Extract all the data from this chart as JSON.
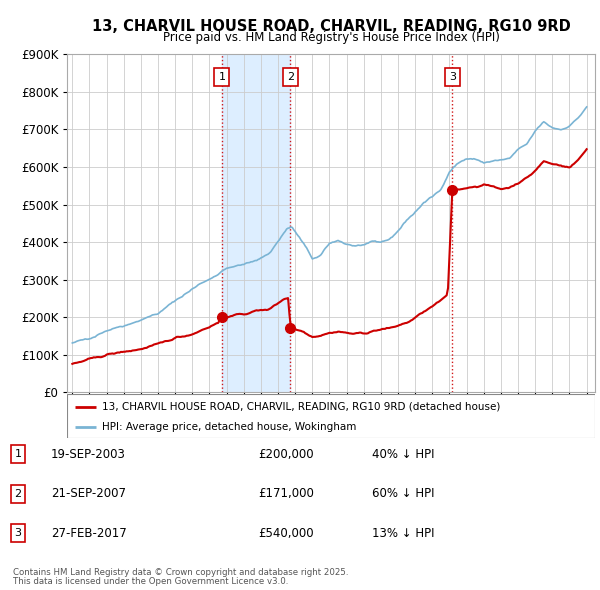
{
  "title": "13, CHARVIL HOUSE ROAD, CHARVIL, READING, RG10 9RD",
  "subtitle": "Price paid vs. HM Land Registry's House Price Index (HPI)",
  "legend_line1": "13, CHARVIL HOUSE ROAD, CHARVIL, READING, RG10 9RD (detached house)",
  "legend_line2": "HPI: Average price, detached house, Wokingham",
  "transactions": [
    {
      "num": 1,
      "date": "19-SEP-2003",
      "date_val": 2003.72,
      "price": 200000,
      "label": "40% ↓ HPI"
    },
    {
      "num": 2,
      "date": "21-SEP-2007",
      "date_val": 2007.72,
      "price": 171000,
      "label": "60% ↓ HPI"
    },
    {
      "num": 3,
      "date": "27-FEB-2017",
      "date_val": 2017.16,
      "price": 540000,
      "label": "13% ↓ HPI"
    }
  ],
  "footnote1": "Contains HM Land Registry data © Crown copyright and database right 2025.",
  "footnote2": "This data is licensed under the Open Government Licence v3.0.",
  "red_color": "#cc0000",
  "blue_color": "#7ab4d4",
  "shade_color": "#ddeeff",
  "grid_color": "#cccccc",
  "bg_color": "#ffffff",
  "ylim": [
    0,
    900000
  ],
  "xlim_start": 1994.7,
  "xlim_end": 2025.5,
  "hpi_anchors": [
    [
      1995.0,
      130000
    ],
    [
      1996.0,
      145000
    ],
    [
      1997.0,
      165000
    ],
    [
      1998.5,
      185000
    ],
    [
      2000.0,
      210000
    ],
    [
      2001.5,
      260000
    ],
    [
      2002.5,
      290000
    ],
    [
      2003.5,
      315000
    ],
    [
      2004.0,
      330000
    ],
    [
      2005.0,
      340000
    ],
    [
      2005.5,
      348000
    ],
    [
      2006.5,
      370000
    ],
    [
      2007.5,
      435000
    ],
    [
      2007.8,
      440000
    ],
    [
      2008.5,
      395000
    ],
    [
      2009.0,
      355000
    ],
    [
      2009.5,
      365000
    ],
    [
      2010.0,
      395000
    ],
    [
      2010.5,
      405000
    ],
    [
      2011.0,
      395000
    ],
    [
      2011.5,
      390000
    ],
    [
      2012.0,
      392000
    ],
    [
      2012.5,
      398000
    ],
    [
      2013.0,
      400000
    ],
    [
      2013.5,
      408000
    ],
    [
      2014.0,
      430000
    ],
    [
      2014.5,
      458000
    ],
    [
      2015.0,
      480000
    ],
    [
      2015.5,
      505000
    ],
    [
      2016.0,
      520000
    ],
    [
      2016.5,
      540000
    ],
    [
      2017.0,
      590000
    ],
    [
      2017.5,
      610000
    ],
    [
      2018.0,
      622000
    ],
    [
      2018.5,
      620000
    ],
    [
      2019.0,
      612000
    ],
    [
      2019.5,
      615000
    ],
    [
      2020.0,
      618000
    ],
    [
      2020.5,
      622000
    ],
    [
      2021.0,
      645000
    ],
    [
      2021.5,
      660000
    ],
    [
      2022.0,
      695000
    ],
    [
      2022.5,
      720000
    ],
    [
      2023.0,
      705000
    ],
    [
      2023.5,
      700000
    ],
    [
      2024.0,
      710000
    ],
    [
      2024.5,
      730000
    ],
    [
      2025.0,
      760000
    ]
  ],
  "red_anchors": [
    [
      1995.0,
      75000
    ],
    [
      1996.0,
      88000
    ],
    [
      1997.0,
      100000
    ],
    [
      1998.0,
      108000
    ],
    [
      1999.0,
      115000
    ],
    [
      2000.0,
      128000
    ],
    [
      2001.0,
      145000
    ],
    [
      2002.0,
      155000
    ],
    [
      2003.0,
      175000
    ],
    [
      2003.5,
      185000
    ],
    [
      2003.72,
      200000
    ],
    [
      2004.0,
      202000
    ],
    [
      2004.5,
      205000
    ],
    [
      2005.0,
      208000
    ],
    [
      2005.5,
      215000
    ],
    [
      2006.0,
      218000
    ],
    [
      2006.5,
      222000
    ],
    [
      2007.3,
      248000
    ],
    [
      2007.6,
      252000
    ],
    [
      2007.72,
      171000
    ],
    [
      2008.0,
      168000
    ],
    [
      2008.5,
      162000
    ],
    [
      2009.0,
      148000
    ],
    [
      2009.5,
      152000
    ],
    [
      2010.0,
      158000
    ],
    [
      2010.5,
      162000
    ],
    [
      2011.0,
      158000
    ],
    [
      2011.5,
      156000
    ],
    [
      2012.0,
      158000
    ],
    [
      2012.5,
      162000
    ],
    [
      2013.0,
      168000
    ],
    [
      2013.5,
      170000
    ],
    [
      2014.0,
      178000
    ],
    [
      2014.5,
      185000
    ],
    [
      2015.0,
      198000
    ],
    [
      2015.5,
      215000
    ],
    [
      2016.0,
      228000
    ],
    [
      2016.5,
      245000
    ],
    [
      2016.9,
      258000
    ],
    [
      2017.16,
      540000
    ],
    [
      2017.5,
      540000
    ],
    [
      2018.0,
      545000
    ],
    [
      2018.5,
      548000
    ],
    [
      2019.0,
      552000
    ],
    [
      2019.5,
      548000
    ],
    [
      2020.0,
      542000
    ],
    [
      2020.5,
      545000
    ],
    [
      2021.0,
      558000
    ],
    [
      2021.5,
      570000
    ],
    [
      2022.0,
      590000
    ],
    [
      2022.5,
      615000
    ],
    [
      2023.0,
      608000
    ],
    [
      2023.5,
      605000
    ],
    [
      2024.0,
      598000
    ],
    [
      2024.5,
      618000
    ],
    [
      2025.0,
      648000
    ]
  ]
}
